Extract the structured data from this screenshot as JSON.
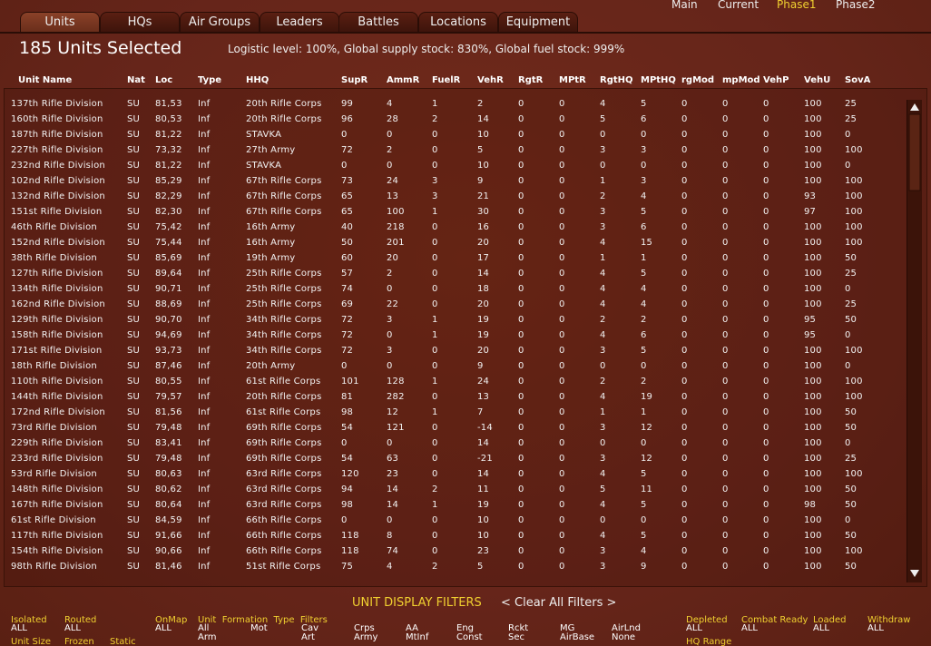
{
  "top_nav": [
    "Main",
    "Current",
    "Phase1",
    "Phase2"
  ],
  "tabs": [
    "Units",
    "HQs",
    "Air Groups",
    "Leaders",
    "Battles",
    "Locations",
    "Equipment"
  ],
  "header": {
    "title": "185 Units Selected",
    "status": "Logistic level: 100%, Global supply stock: 830%, Global fuel stock: 999%"
  },
  "table": {
    "columns": [
      "Unit Name",
      "Nat",
      "Loc",
      "Type",
      "HHQ",
      "SupR",
      "AmmR",
      "FuelR",
      "VehR",
      "RgtR",
      "MPtR",
      "RgtHQ",
      "MPtHQ",
      "rgMod",
      "mpMod",
      "VehP",
      "VehU",
      "SovA"
    ],
    "rows": [
      [
        "137th Rifle Division",
        "SU",
        "81,53",
        "Inf",
        "20th Rifle Corps",
        99,
        4,
        1,
        2,
        0,
        0,
        4,
        5,
        0,
        0,
        0,
        100,
        25
      ],
      [
        "160th Rifle Division",
        "SU",
        "80,53",
        "Inf",
        "20th Rifle Corps",
        96,
        28,
        2,
        14,
        0,
        0,
        5,
        6,
        0,
        0,
        0,
        100,
        25
      ],
      [
        "187th Rifle Division",
        "SU",
        "81,22",
        "Inf",
        "STAVKA",
        0,
        0,
        0,
        10,
        0,
        0,
        0,
        0,
        0,
        0,
        0,
        100,
        0
      ],
      [
        "227th Rifle Division",
        "SU",
        "73,32",
        "Inf",
        "27th Army",
        72,
        2,
        0,
        5,
        0,
        0,
        3,
        3,
        0,
        0,
        0,
        100,
        100
      ],
      [
        "232nd Rifle Division",
        "SU",
        "81,22",
        "Inf",
        "STAVKA",
        0,
        0,
        0,
        10,
        0,
        0,
        0,
        0,
        0,
        0,
        0,
        100,
        0
      ],
      [
        "102nd Rifle Division",
        "SU",
        "85,29",
        "Inf",
        "67th Rifle Corps",
        73,
        24,
        3,
        9,
        0,
        0,
        1,
        3,
        0,
        0,
        0,
        100,
        100
      ],
      [
        "132nd Rifle Division",
        "SU",
        "82,29",
        "Inf",
        "67th Rifle Corps",
        65,
        13,
        3,
        21,
        0,
        0,
        2,
        4,
        0,
        0,
        0,
        93,
        100
      ],
      [
        "151st Rifle Division",
        "SU",
        "82,30",
        "Inf",
        "67th Rifle Corps",
        65,
        100,
        1,
        30,
        0,
        0,
        3,
        5,
        0,
        0,
        0,
        97,
        100
      ],
      [
        "46th Rifle Division",
        "SU",
        "75,42",
        "Inf",
        "16th Army",
        40,
        218,
        0,
        16,
        0,
        0,
        3,
        6,
        0,
        0,
        0,
        100,
        100
      ],
      [
        "152nd Rifle Division",
        "SU",
        "75,44",
        "Inf",
        "16th Army",
        50,
        201,
        0,
        20,
        0,
        0,
        4,
        15,
        0,
        0,
        0,
        100,
        100
      ],
      [
        "38th Rifle Division",
        "SU",
        "85,69",
        "Inf",
        "19th Army",
        60,
        20,
        0,
        17,
        0,
        0,
        1,
        1,
        0,
        0,
        0,
        100,
        50
      ],
      [
        "127th Rifle Division",
        "SU",
        "89,64",
        "Inf",
        "25th Rifle Corps",
        57,
        2,
        0,
        14,
        0,
        0,
        4,
        5,
        0,
        0,
        0,
        100,
        25
      ],
      [
        "134th Rifle Division",
        "SU",
        "90,71",
        "Inf",
        "25th Rifle Corps",
        74,
        0,
        0,
        18,
        0,
        0,
        4,
        4,
        0,
        0,
        0,
        100,
        0
      ],
      [
        "162nd Rifle Division",
        "SU",
        "88,69",
        "Inf",
        "25th Rifle Corps",
        69,
        22,
        0,
        20,
        0,
        0,
        4,
        4,
        0,
        0,
        0,
        100,
        25
      ],
      [
        "129th Rifle Division",
        "SU",
        "90,70",
        "Inf",
        "34th Rifle Corps",
        72,
        3,
        1,
        19,
        0,
        0,
        2,
        2,
        0,
        0,
        0,
        95,
        50
      ],
      [
        "158th Rifle Division",
        "SU",
        "94,69",
        "Inf",
        "34th Rifle Corps",
        72,
        0,
        1,
        19,
        0,
        0,
        4,
        6,
        0,
        0,
        0,
        95,
        0
      ],
      [
        "171st Rifle Division",
        "SU",
        "93,73",
        "Inf",
        "34th Rifle Corps",
        72,
        3,
        0,
        20,
        0,
        0,
        3,
        5,
        0,
        0,
        0,
        100,
        100
      ],
      [
        "18th Rifle Division",
        "SU",
        "87,46",
        "Inf",
        "20th Army",
        0,
        0,
        0,
        9,
        0,
        0,
        0,
        0,
        0,
        0,
        0,
        100,
        0
      ],
      [
        "110th Rifle Division",
        "SU",
        "80,55",
        "Inf",
        "61st Rifle Corps",
        101,
        128,
        1,
        24,
        0,
        0,
        2,
        2,
        0,
        0,
        0,
        100,
        100
      ],
      [
        "144th Rifle Division",
        "SU",
        "79,57",
        "Inf",
        "20th Rifle Corps",
        81,
        282,
        0,
        13,
        0,
        0,
        4,
        19,
        0,
        0,
        0,
        100,
        100
      ],
      [
        "172nd Rifle Division",
        "SU",
        "81,56",
        "Inf",
        "61st Rifle Corps",
        98,
        12,
        1,
        7,
        0,
        0,
        1,
        1,
        0,
        0,
        0,
        100,
        50
      ],
      [
        "73rd Rifle Division",
        "SU",
        "79,48",
        "Inf",
        "69th Rifle Corps",
        54,
        121,
        0,
        -14,
        0,
        0,
        3,
        12,
        0,
        0,
        0,
        100,
        50
      ],
      [
        "229th Rifle Division",
        "SU",
        "83,41",
        "Inf",
        "69th Rifle Corps",
        0,
        0,
        0,
        14,
        0,
        0,
        0,
        0,
        0,
        0,
        0,
        100,
        0
      ],
      [
        "233rd Rifle Division",
        "SU",
        "79,48",
        "Inf",
        "69th Rifle Corps",
        54,
        63,
        0,
        -21,
        0,
        0,
        3,
        12,
        0,
        0,
        0,
        100,
        25
      ],
      [
        "53rd Rifle Division",
        "SU",
        "80,63",
        "Inf",
        "63rd Rifle Corps",
        120,
        23,
        0,
        14,
        0,
        0,
        4,
        5,
        0,
        0,
        0,
        100,
        100
      ],
      [
        "148th Rifle Division",
        "SU",
        "80,62",
        "Inf",
        "63rd Rifle Corps",
        94,
        14,
        2,
        11,
        0,
        0,
        5,
        11,
        0,
        0,
        0,
        100,
        50
      ],
      [
        "167th Rifle Division",
        "SU",
        "80,64",
        "Inf",
        "63rd Rifle Corps",
        98,
        14,
        1,
        19,
        0,
        0,
        4,
        5,
        0,
        0,
        0,
        98,
        50
      ],
      [
        "61st Rifle Division",
        "SU",
        "84,59",
        "Inf",
        "66th Rifle Corps",
        0,
        0,
        0,
        10,
        0,
        0,
        0,
        0,
        0,
        0,
        0,
        100,
        0
      ],
      [
        "117th Rifle Division",
        "SU",
        "91,66",
        "Inf",
        "66th Rifle Corps",
        118,
        8,
        0,
        10,
        0,
        0,
        4,
        5,
        0,
        0,
        0,
        100,
        50
      ],
      [
        "154th Rifle Division",
        "SU",
        "90,66",
        "Inf",
        "66th Rifle Corps",
        118,
        74,
        0,
        23,
        0,
        0,
        3,
        4,
        0,
        0,
        0,
        100,
        100
      ],
      [
        "98th Rifle Division",
        "SU",
        "81,46",
        "Inf",
        "51st Rifle Corps",
        75,
        4,
        2,
        5,
        0,
        0,
        3,
        9,
        0,
        0,
        0,
        100,
        50
      ]
    ]
  },
  "filters": {
    "title": "UNIT DISPLAY FILTERS",
    "clear": "< Clear All Filters >",
    "left_groups": [
      {
        "label": "Isolated",
        "value": "ALL"
      },
      {
        "label": "Routed",
        "value": "ALL"
      },
      {
        "label": "OnMap",
        "value": "ALL"
      }
    ],
    "type_label": "Unit  Formation  Type  Filters",
    "type_options": [
      [
        "All",
        "Arm"
      ],
      [
        "Mot"
      ],
      [
        "Cav",
        "Art"
      ],
      [
        "Crps",
        "Army"
      ],
      [
        "AA",
        "MtInf"
      ],
      [
        "Eng",
        "Const"
      ],
      [
        "Rckt",
        "Sec"
      ],
      [
        "MG",
        "AirBase"
      ],
      [
        "AirLnd",
        "None"
      ]
    ],
    "right_groups": [
      {
        "label": "Depleted",
        "value": "ALL"
      },
      {
        "label": "Combat Ready",
        "value": "ALL"
      },
      {
        "label": "Loaded",
        "value": "ALL"
      },
      {
        "label": "Withdraw",
        "value": "ALL"
      }
    ],
    "more": [
      "Unit Size",
      "Frozen",
      "Static",
      "HQ Range"
    ]
  }
}
